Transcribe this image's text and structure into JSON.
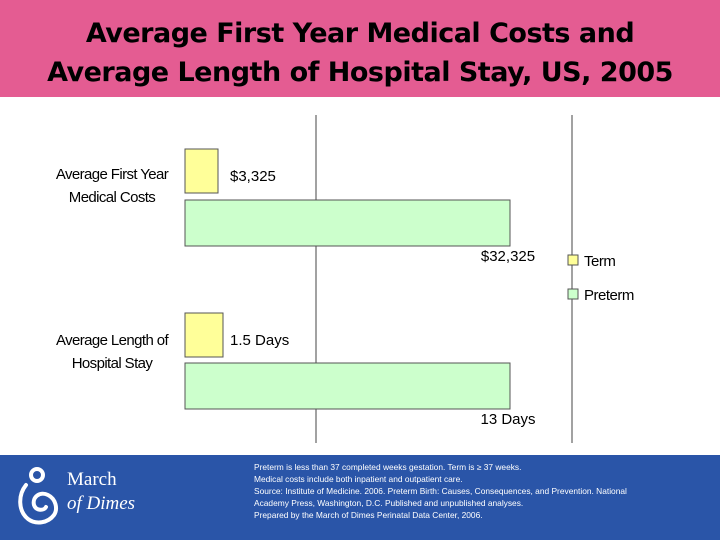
{
  "header": {
    "title_line1": "Average First Year Medical Costs and",
    "title_line2": "Average Length of Hospital Stay, US, 2005",
    "background_color": "#e45c92"
  },
  "chart_data": {
    "type": "bar",
    "orientation": "horizontal",
    "title": "Average First Year Medical Costs and Average Length of Hospital Stay, US, 2005",
    "categories": [
      [
        "Average First Year",
        "Medical Costs"
      ],
      [
        "Average Length of",
        "Hospital Stay"
      ]
    ],
    "series": [
      {
        "name": "Term",
        "color": "#ffff99",
        "values": [
          3325,
          1.5
        ],
        "labels": [
          "$3,325",
          "1.5 Days"
        ]
      },
      {
        "name": "Preterm",
        "color": "#ccffcc",
        "values": [
          32325,
          13
        ],
        "labels": [
          "$32,325",
          "13 Days"
        ]
      }
    ],
    "legend_position": "right",
    "grid": false
  },
  "footer": {
    "background_color": "#2a55a8",
    "logo": {
      "line1": "March",
      "line2": "of Dimes"
    },
    "notes": [
      "Preterm is less than 37 completed weeks gestation. Term is ≥ 37 weeks.",
      "Medical costs include both inpatient and outpatient care.",
      "Source: Institute of Medicine. 2006. Preterm Birth: Causes, Consequences, and Prevention. National",
      "Academy Press, Washington, D.C. Published and unpublished analyses.",
      "Prepared by the March of Dimes Perinatal Data Center, 2006."
    ]
  }
}
